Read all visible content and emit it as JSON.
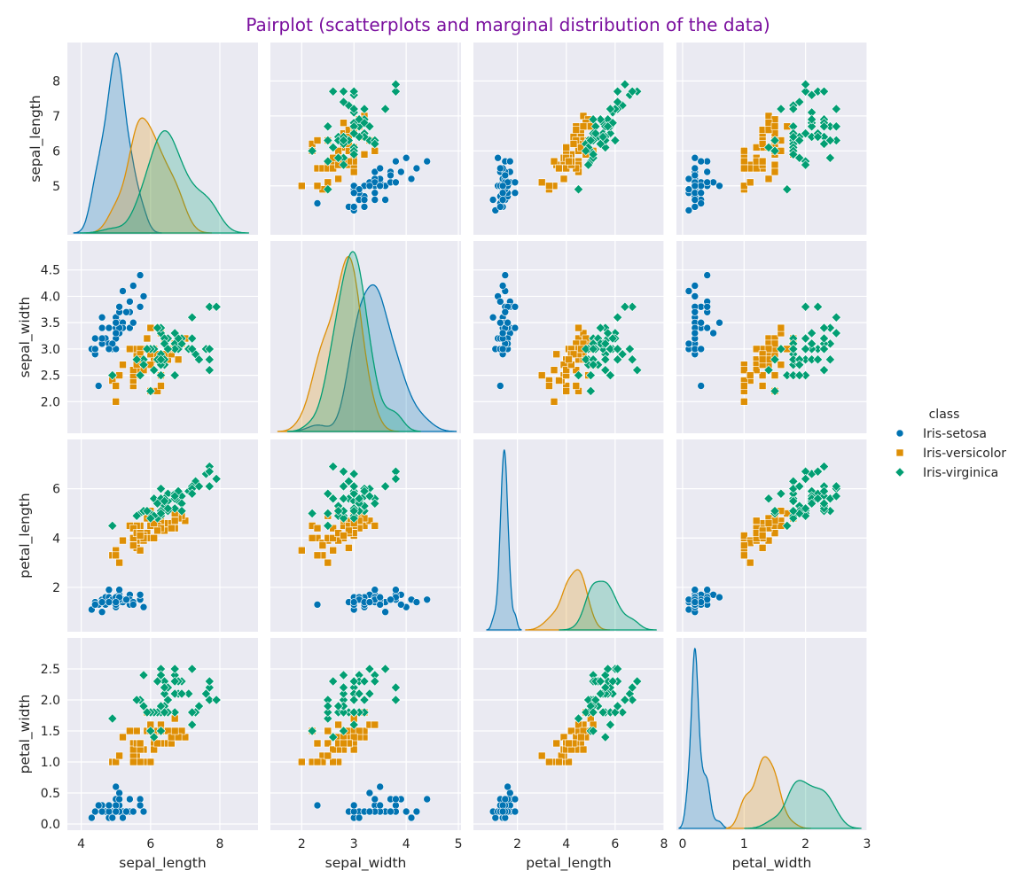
{
  "title": "Pairplot (scatterplots and marginal distribution of the data)",
  "colors": {
    "title": "#7a0f9e",
    "panel_bg": "#eaeaf2",
    "grid": "#ffffff",
    "Iris-setosa": "#0173b2",
    "Iris-versicolor": "#de8f05",
    "Iris-virginica": "#029e73"
  },
  "legend": {
    "title": "class",
    "items": [
      {
        "label": "Iris-setosa",
        "marker": "circle"
      },
      {
        "label": "Iris-versicolor",
        "marker": "square"
      },
      {
        "label": "Iris-virginica",
        "marker": "diamond"
      }
    ]
  },
  "chart_data": {
    "type": "scatter",
    "variables": [
      "sepal_length",
      "sepal_width",
      "petal_length",
      "petal_width"
    ],
    "axes": {
      "sepal_length": {
        "label": "sepal_length",
        "ticks": [
          4,
          6,
          8
        ],
        "ticks_y": [
          5,
          6,
          7,
          8
        ],
        "lim": [
          3.6,
          9.1
        ]
      },
      "sepal_width": {
        "label": "sepal_width",
        "ticks": [
          2,
          3,
          4,
          5
        ],
        "ticks_y": [
          2.0,
          2.5,
          3.0,
          3.5,
          4.0,
          4.5
        ],
        "lim": [
          1.4,
          5.05
        ]
      },
      "petal_length": {
        "label": "petal_length",
        "ticks": [
          2,
          4,
          6,
          8
        ],
        "ticks_y": [
          2,
          4,
          6
        ],
        "lim": [
          0.2,
          8.0
        ]
      },
      "petal_width": {
        "label": "petal_width",
        "ticks": [
          0,
          1,
          2,
          3
        ],
        "ticks_y": [
          0.0,
          0.5,
          1.0,
          1.5,
          2.0,
          2.5
        ],
        "lim": [
          -0.1,
          3.0
        ]
      }
    },
    "diagonal": "kde",
    "grid": true,
    "legend_position": "right",
    "series": [
      {
        "name": "Iris-setosa",
        "marker": "circle",
        "points": [
          [
            5.1,
            3.5,
            1.4,
            0.2
          ],
          [
            4.9,
            3.0,
            1.4,
            0.2
          ],
          [
            4.7,
            3.2,
            1.3,
            0.2
          ],
          [
            4.6,
            3.1,
            1.5,
            0.2
          ],
          [
            5.0,
            3.6,
            1.4,
            0.2
          ],
          [
            5.4,
            3.9,
            1.7,
            0.4
          ],
          [
            4.6,
            3.4,
            1.4,
            0.3
          ],
          [
            5.0,
            3.4,
            1.5,
            0.2
          ],
          [
            4.4,
            2.9,
            1.4,
            0.2
          ],
          [
            4.9,
            3.1,
            1.5,
            0.1
          ],
          [
            5.4,
            3.7,
            1.5,
            0.2
          ],
          [
            4.8,
            3.4,
            1.6,
            0.2
          ],
          [
            4.8,
            3.0,
            1.4,
            0.1
          ],
          [
            4.3,
            3.0,
            1.1,
            0.1
          ],
          [
            5.8,
            4.0,
            1.2,
            0.2
          ],
          [
            5.7,
            4.4,
            1.5,
            0.4
          ],
          [
            5.4,
            3.9,
            1.3,
            0.4
          ],
          [
            5.1,
            3.5,
            1.4,
            0.3
          ],
          [
            5.7,
            3.8,
            1.7,
            0.3
          ],
          [
            5.1,
            3.8,
            1.5,
            0.3
          ],
          [
            5.4,
            3.4,
            1.7,
            0.2
          ],
          [
            5.1,
            3.7,
            1.5,
            0.4
          ],
          [
            4.6,
            3.6,
            1.0,
            0.2
          ],
          [
            5.1,
            3.3,
            1.7,
            0.5
          ],
          [
            4.8,
            3.4,
            1.9,
            0.2
          ],
          [
            5.0,
            3.0,
            1.6,
            0.2
          ],
          [
            5.0,
            3.4,
            1.6,
            0.4
          ],
          [
            5.2,
            3.5,
            1.5,
            0.2
          ],
          [
            5.2,
            3.4,
            1.4,
            0.2
          ],
          [
            4.7,
            3.2,
            1.6,
            0.2
          ],
          [
            4.8,
            3.1,
            1.6,
            0.2
          ],
          [
            5.4,
            3.4,
            1.5,
            0.4
          ],
          [
            5.2,
            4.1,
            1.5,
            0.1
          ],
          [
            5.5,
            4.2,
            1.4,
            0.2
          ],
          [
            4.9,
            3.1,
            1.5,
            0.1
          ],
          [
            5.0,
            3.2,
            1.2,
            0.2
          ],
          [
            5.5,
            3.5,
            1.3,
            0.2
          ],
          [
            4.9,
            3.1,
            1.5,
            0.1
          ],
          [
            4.4,
            3.0,
            1.3,
            0.2
          ],
          [
            5.1,
            3.4,
            1.5,
            0.2
          ],
          [
            5.0,
            3.5,
            1.3,
            0.3
          ],
          [
            4.5,
            2.3,
            1.3,
            0.3
          ],
          [
            4.4,
            3.2,
            1.3,
            0.2
          ],
          [
            5.0,
            3.5,
            1.6,
            0.6
          ],
          [
            5.1,
            3.8,
            1.9,
            0.4
          ],
          [
            4.8,
            3.0,
            1.4,
            0.3
          ],
          [
            5.1,
            3.8,
            1.6,
            0.2
          ],
          [
            4.6,
            3.2,
            1.4,
            0.2
          ],
          [
            5.3,
            3.7,
            1.5,
            0.2
          ],
          [
            5.0,
            3.3,
            1.4,
            0.2
          ]
        ]
      },
      {
        "name": "Iris-versicolor",
        "marker": "square",
        "points": [
          [
            7.0,
            3.2,
            4.7,
            1.4
          ],
          [
            6.4,
            3.2,
            4.5,
            1.5
          ],
          [
            6.9,
            3.1,
            4.9,
            1.5
          ],
          [
            5.5,
            2.3,
            4.0,
            1.3
          ],
          [
            6.5,
            2.8,
            4.6,
            1.5
          ],
          [
            5.7,
            2.8,
            4.5,
            1.3
          ],
          [
            6.3,
            3.3,
            4.7,
            1.6
          ],
          [
            4.9,
            2.4,
            3.3,
            1.0
          ],
          [
            6.6,
            2.9,
            4.6,
            1.3
          ],
          [
            5.2,
            2.7,
            3.9,
            1.4
          ],
          [
            5.0,
            2.0,
            3.5,
            1.0
          ],
          [
            5.9,
            3.0,
            4.2,
            1.5
          ],
          [
            6.0,
            2.2,
            4.0,
            1.0
          ],
          [
            6.1,
            2.9,
            4.7,
            1.4
          ],
          [
            5.6,
            2.9,
            3.6,
            1.3
          ],
          [
            6.7,
            3.1,
            4.4,
            1.4
          ],
          [
            5.6,
            3.0,
            4.5,
            1.5
          ],
          [
            5.8,
            2.7,
            4.1,
            1.0
          ],
          [
            6.2,
            2.2,
            4.5,
            1.5
          ],
          [
            5.6,
            2.5,
            3.9,
            1.1
          ],
          [
            5.9,
            3.2,
            4.8,
            1.8
          ],
          [
            6.1,
            2.8,
            4.0,
            1.3
          ],
          [
            6.3,
            2.5,
            4.9,
            1.5
          ],
          [
            6.1,
            2.8,
            4.7,
            1.2
          ],
          [
            6.4,
            2.9,
            4.3,
            1.3
          ],
          [
            6.6,
            3.0,
            4.4,
            1.4
          ],
          [
            6.8,
            2.8,
            4.8,
            1.4
          ],
          [
            6.7,
            3.0,
            5.0,
            1.7
          ],
          [
            6.0,
            2.9,
            4.5,
            1.5
          ],
          [
            5.7,
            2.6,
            3.5,
            1.0
          ],
          [
            5.5,
            2.4,
            3.8,
            1.1
          ],
          [
            5.5,
            2.4,
            3.7,
            1.0
          ],
          [
            5.8,
            2.7,
            3.9,
            1.2
          ],
          [
            6.0,
            2.7,
            5.1,
            1.6
          ],
          [
            5.4,
            3.0,
            4.5,
            1.5
          ],
          [
            6.0,
            3.4,
            4.5,
            1.6
          ],
          [
            6.7,
            3.1,
            4.7,
            1.5
          ],
          [
            6.3,
            2.3,
            4.4,
            1.3
          ],
          [
            5.6,
            3.0,
            4.1,
            1.3
          ],
          [
            5.5,
            2.5,
            4.0,
            1.3
          ],
          [
            5.5,
            2.6,
            4.4,
            1.2
          ],
          [
            6.1,
            3.0,
            4.6,
            1.4
          ],
          [
            5.8,
            2.6,
            4.0,
            1.2
          ],
          [
            5.0,
            2.3,
            3.3,
            1.0
          ],
          [
            5.6,
            2.7,
            4.2,
            1.3
          ],
          [
            5.7,
            3.0,
            4.2,
            1.2
          ],
          [
            5.7,
            2.9,
            4.2,
            1.3
          ],
          [
            6.2,
            2.9,
            4.3,
            1.3
          ],
          [
            5.1,
            2.5,
            3.0,
            1.1
          ],
          [
            5.7,
            2.8,
            4.1,
            1.3
          ]
        ]
      },
      {
        "name": "Iris-virginica",
        "marker": "diamond",
        "points": [
          [
            6.3,
            3.3,
            6.0,
            2.5
          ],
          [
            5.8,
            2.7,
            5.1,
            1.9
          ],
          [
            7.1,
            3.0,
            5.9,
            2.1
          ],
          [
            6.3,
            2.9,
            5.6,
            1.8
          ],
          [
            6.5,
            3.0,
            5.8,
            2.2
          ],
          [
            7.6,
            3.0,
            6.6,
            2.1
          ],
          [
            4.9,
            2.5,
            4.5,
            1.7
          ],
          [
            7.3,
            2.9,
            6.3,
            1.8
          ],
          [
            6.7,
            2.5,
            5.8,
            1.8
          ],
          [
            7.2,
            3.6,
            6.1,
            2.5
          ],
          [
            6.5,
            3.2,
            5.1,
            2.0
          ],
          [
            6.4,
            2.7,
            5.3,
            1.9
          ],
          [
            6.8,
            3.0,
            5.5,
            2.1
          ],
          [
            5.7,
            2.5,
            5.0,
            2.0
          ],
          [
            5.8,
            2.8,
            5.1,
            2.4
          ],
          [
            6.4,
            3.2,
            5.3,
            2.3
          ],
          [
            6.5,
            3.0,
            5.5,
            1.8
          ],
          [
            7.7,
            3.8,
            6.7,
            2.2
          ],
          [
            7.7,
            2.6,
            6.9,
            2.3
          ],
          [
            6.0,
            2.2,
            5.0,
            1.5
          ],
          [
            6.9,
            3.2,
            5.7,
            2.3
          ],
          [
            5.6,
            2.8,
            4.9,
            2.0
          ],
          [
            7.7,
            2.8,
            6.7,
            2.0
          ],
          [
            6.3,
            2.7,
            4.9,
            1.8
          ],
          [
            6.7,
            3.3,
            5.7,
            2.1
          ],
          [
            7.2,
            3.2,
            6.0,
            1.8
          ],
          [
            6.2,
            2.8,
            4.8,
            1.8
          ],
          [
            6.1,
            3.0,
            4.9,
            1.8
          ],
          [
            6.4,
            2.8,
            5.6,
            2.1
          ],
          [
            7.2,
            3.0,
            5.8,
            1.6
          ],
          [
            7.4,
            2.8,
            6.1,
            1.9
          ],
          [
            7.9,
            3.8,
            6.4,
            2.0
          ],
          [
            6.4,
            2.8,
            5.6,
            2.2
          ],
          [
            6.3,
            2.8,
            5.1,
            1.5
          ],
          [
            6.1,
            2.6,
            5.6,
            1.4
          ],
          [
            7.7,
            3.0,
            6.1,
            2.3
          ],
          [
            6.3,
            3.4,
            5.6,
            2.4
          ],
          [
            6.4,
            3.1,
            5.5,
            1.8
          ],
          [
            6.0,
            3.0,
            4.8,
            1.8
          ],
          [
            6.9,
            3.1,
            5.4,
            2.1
          ],
          [
            6.7,
            3.1,
            5.6,
            2.4
          ],
          [
            6.9,
            3.1,
            5.1,
            2.3
          ],
          [
            5.8,
            2.7,
            5.1,
            1.9
          ],
          [
            6.8,
            3.2,
            5.9,
            2.3
          ],
          [
            6.7,
            3.3,
            5.7,
            2.5
          ],
          [
            6.7,
            3.0,
            5.2,
            2.3
          ],
          [
            6.3,
            2.5,
            5.0,
            1.9
          ],
          [
            6.5,
            3.0,
            5.2,
            2.0
          ],
          [
            6.2,
            3.4,
            5.4,
            2.3
          ],
          [
            5.9,
            3.0,
            5.1,
            1.8
          ]
        ]
      }
    ]
  }
}
